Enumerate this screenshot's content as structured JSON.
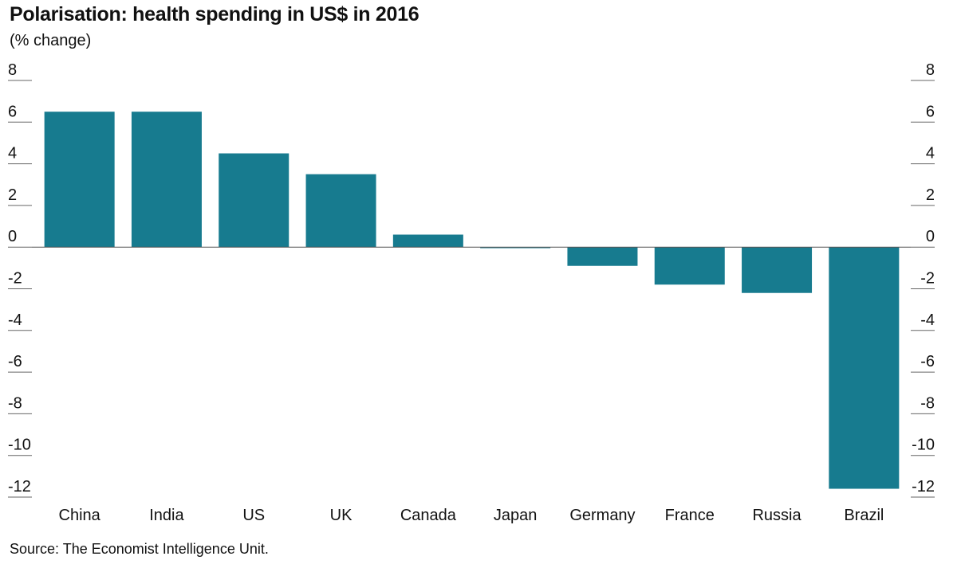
{
  "chart_data": {
    "type": "bar",
    "title": "Polarisation: health spending in US$ in 2016",
    "subtitle": "(% change)",
    "source": "Source: The Economist Intelligence Unit.",
    "categories": [
      "China",
      "India",
      "US",
      "UK",
      "Canada",
      "Japan",
      "Germany",
      "France",
      "Russia",
      "Brazil"
    ],
    "values": [
      6.5,
      6.5,
      4.5,
      3.5,
      0.6,
      -0.05,
      -0.9,
      -1.8,
      -2.2,
      -11.6
    ],
    "ylim": [
      -12,
      8
    ],
    "yticks": [
      "8",
      "6",
      "4",
      "2",
      "0",
      "-2",
      "-4",
      "-6",
      "-8",
      "-10",
      "-12"
    ],
    "axes": "both-sides",
    "bar_color": "#177b8f",
    "grid": false,
    "legend": "none"
  }
}
